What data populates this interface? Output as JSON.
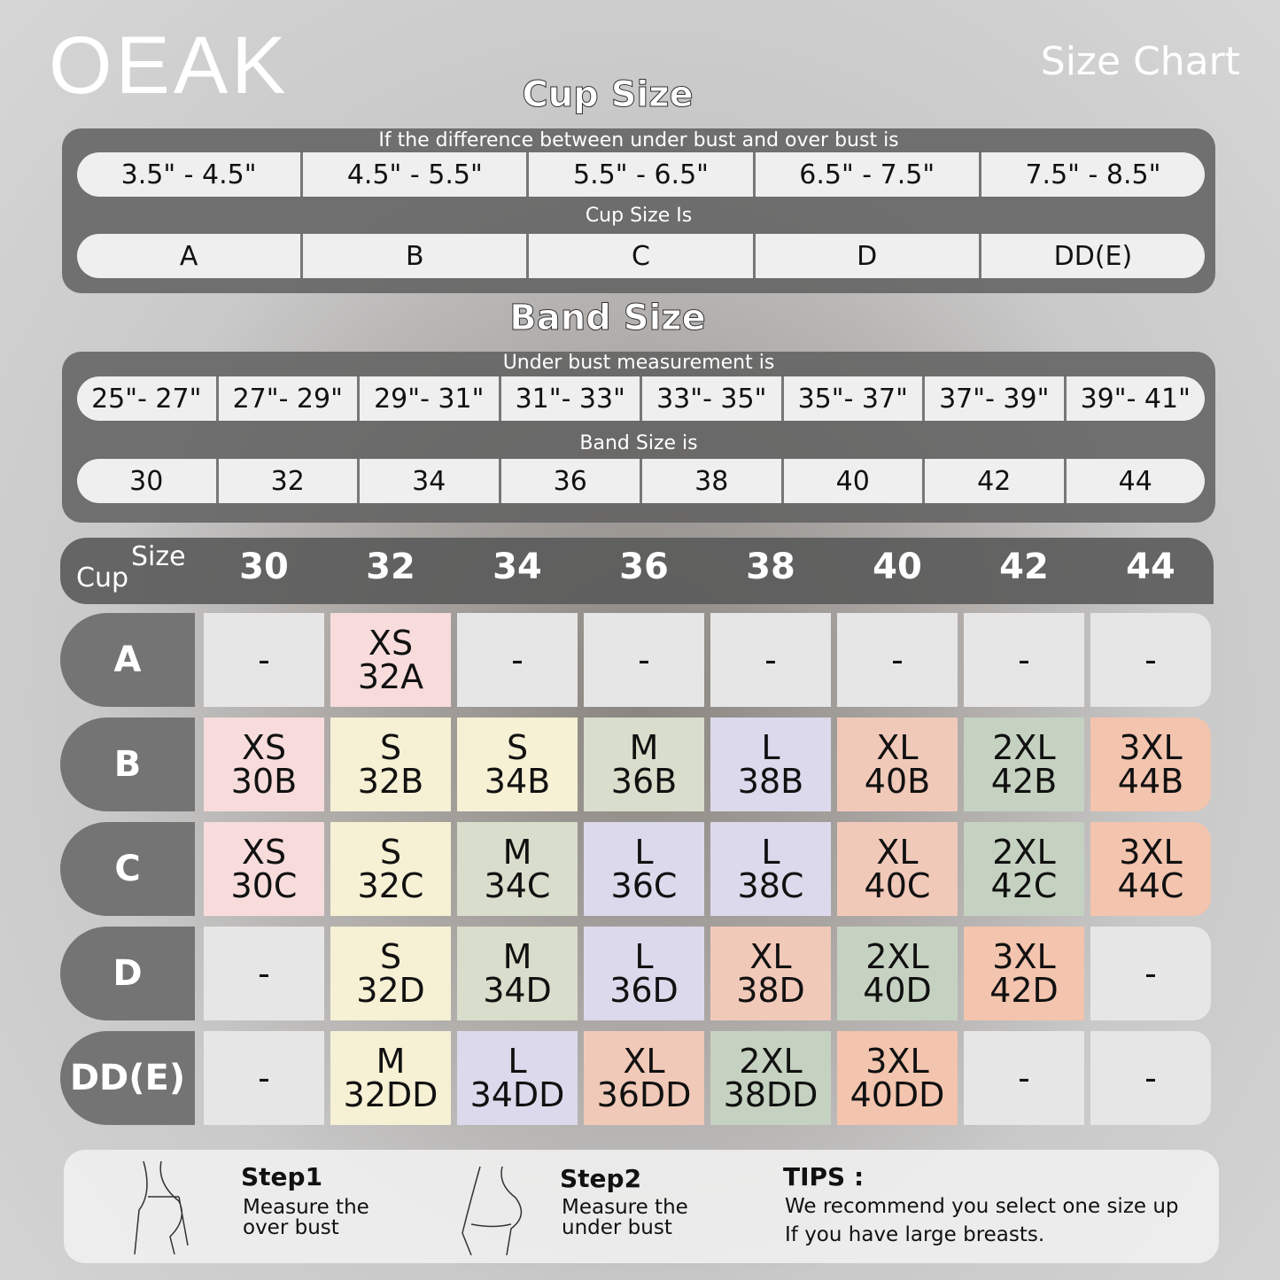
{
  "logo": "OEAK",
  "header_title": "Size Chart",
  "cup_section": {
    "title": "Cup Size",
    "caption1": "If the  difference between under bust and over bust is",
    "ranges": [
      "3.5\" -  4.5\"",
      "4.5\" -  5.5\"",
      "5.5\" -  6.5\"",
      "6.5\" -  7.5\"",
      "7.5\" -  8.5\""
    ],
    "caption2": "Cup Size Is",
    "cups": [
      "A",
      "B",
      "C",
      "D",
      "DD(E)"
    ]
  },
  "band_section": {
    "title": "Band Size",
    "caption1": "Under bust measurement is",
    "ranges": [
      "25\"- 27\"",
      "27\"- 29\"",
      "29\"- 31\"",
      "31\"- 33\"",
      "33\"- 35\"",
      "35\"- 37\"",
      "37\"- 39\"",
      "39\"- 41\""
    ],
    "caption2": "Band Size is",
    "bands": [
      "30",
      "32",
      "34",
      "36",
      "38",
      "40",
      "42",
      "44"
    ]
  },
  "table": {
    "corner_size": "Size",
    "corner_cup": "Cup",
    "columns": [
      "30",
      "32",
      "34",
      "36",
      "38",
      "40",
      "42",
      "44"
    ],
    "colors": {
      "grey": "#e6e6e6",
      "pink": "#f8dcdc",
      "yellow": "#f6f0d4",
      "green": "#d9ddcb",
      "purple": "#ddd9ec",
      "salmon": "#f1c9b9",
      "sage": "#c6d2c1",
      "peach": "#f3c4ae"
    },
    "rows": [
      {
        "cup": "A",
        "cells": [
          [
            "-",
            "",
            "grey"
          ],
          [
            "XS",
            "32A",
            "pink"
          ],
          [
            "-",
            "",
            "grey"
          ],
          [
            "-",
            "",
            "grey"
          ],
          [
            "-",
            "",
            "grey"
          ],
          [
            "-",
            "",
            "grey"
          ],
          [
            "-",
            "",
            "grey"
          ],
          [
            "-",
            "",
            "grey"
          ]
        ]
      },
      {
        "cup": "B",
        "cells": [
          [
            "XS",
            "30B",
            "pink"
          ],
          [
            "S",
            "32B",
            "yellow"
          ],
          [
            "S",
            "34B",
            "yellow"
          ],
          [
            "M",
            "36B",
            "green"
          ],
          [
            "L",
            "38B",
            "purple"
          ],
          [
            "XL",
            "40B",
            "salmon"
          ],
          [
            "2XL",
            "42B",
            "sage"
          ],
          [
            "3XL",
            "44B",
            "peach"
          ]
        ]
      },
      {
        "cup": "C",
        "cells": [
          [
            "XS",
            "30C",
            "pink"
          ],
          [
            "S",
            "32C",
            "yellow"
          ],
          [
            "M",
            "34C",
            "green"
          ],
          [
            "L",
            "36C",
            "purple"
          ],
          [
            "L",
            "38C",
            "purple"
          ],
          [
            "XL",
            "40C",
            "salmon"
          ],
          [
            "2XL",
            "42C",
            "sage"
          ],
          [
            "3XL",
            "44C",
            "peach"
          ]
        ]
      },
      {
        "cup": "D",
        "cells": [
          [
            "-",
            "",
            "grey"
          ],
          [
            "S",
            "32D",
            "yellow"
          ],
          [
            "M",
            "34D",
            "green"
          ],
          [
            "L",
            "36D",
            "purple"
          ],
          [
            "XL",
            "38D",
            "salmon"
          ],
          [
            "2XL",
            "40D",
            "sage"
          ],
          [
            "3XL",
            "42D",
            "peach"
          ],
          [
            "-",
            "",
            "grey"
          ]
        ]
      },
      {
        "cup": "DD(E)",
        "cells": [
          [
            "-",
            "",
            "grey"
          ],
          [
            "M",
            "32DD",
            "yellow"
          ],
          [
            "L",
            "34DD",
            "purple"
          ],
          [
            "XL",
            "36DD",
            "salmon"
          ],
          [
            "2XL",
            "38DD",
            "sage"
          ],
          [
            "3XL",
            "40DD",
            "peach"
          ],
          [
            "-",
            "",
            "grey"
          ],
          [
            "-",
            "",
            "grey"
          ]
        ]
      }
    ]
  },
  "footer": {
    "step1_title": "Step1",
    "step1_text1": "Measure the",
    "step1_text2": "over bust",
    "step2_title": "Step2",
    "step2_text1": "Measure the",
    "step2_text2": "under bust",
    "tips_title": "TIPS :",
    "tips_line1": "We recommend you select one size up",
    "tips_line2": "If you have large breasts."
  }
}
